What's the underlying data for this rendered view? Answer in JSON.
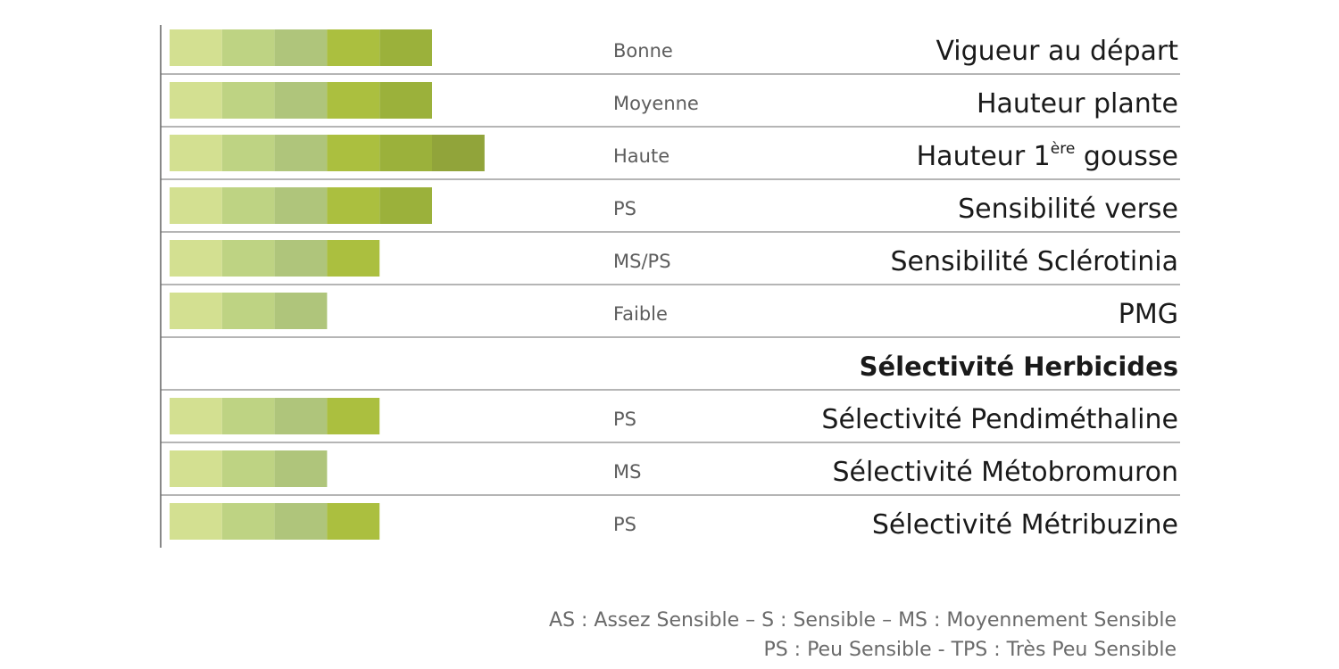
{
  "chart_data": {
    "type": "bar",
    "max_level": 6,
    "segment_colors": [
      "#d3e091",
      "#bed383",
      "#afc57b",
      "#abbf3f",
      "#9bb13b",
      "#91a43a"
    ],
    "rows": [
      {
        "criterion": "Vigueur au départ",
        "rating": "Bonne",
        "level": 5,
        "section": false
      },
      {
        "criterion": "Hauteur plante",
        "rating": "Moyenne",
        "level": 5,
        "section": false
      },
      {
        "criterion": "Hauteur 1",
        "criterion_sup": "ère",
        "criterion_tail": " gousse",
        "rating": "Haute",
        "level": 6,
        "section": false
      },
      {
        "criterion": "Sensibilité verse",
        "rating": "PS",
        "level": 5,
        "section": false
      },
      {
        "criterion": "Sensibilité Sclérotinia",
        "rating": "MS/PS",
        "level": 4,
        "section": false
      },
      {
        "criterion": "PMG",
        "rating": "Faible",
        "level": 3,
        "section": false
      },
      {
        "criterion": "Sélectivité Herbicides",
        "rating": "",
        "level": 0,
        "section": true
      },
      {
        "criterion": "Sélectivité Pendiméthaline",
        "rating": "PS",
        "level": 4,
        "section": false
      },
      {
        "criterion": "Sélectivité Métobromuron",
        "rating": "MS",
        "level": 3,
        "section": false
      },
      {
        "criterion": "Sélectivité Métribuzine",
        "rating": "PS",
        "level": 4,
        "section": false
      }
    ]
  },
  "legend": {
    "line1": "AS : Assez Sensible –  S : Sensible – MS : Moyennement Sensible",
    "line2": "PS : Peu Sensible - TPS : Très Peu Sensible"
  }
}
